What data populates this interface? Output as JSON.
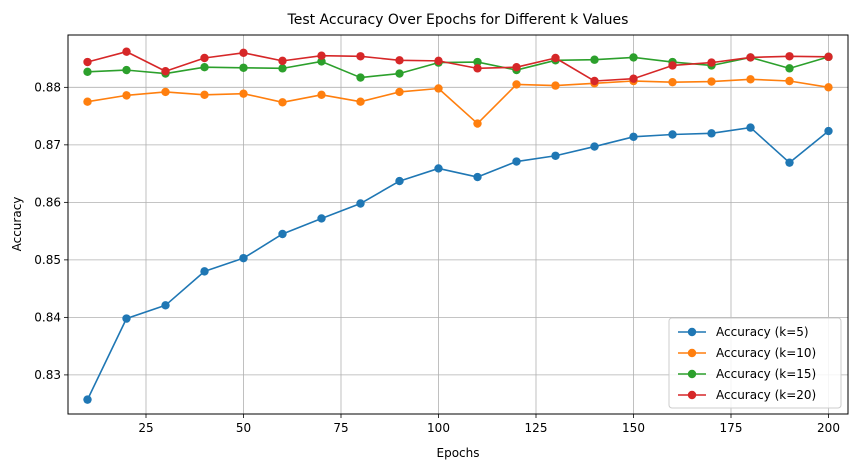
{
  "chart_data": {
    "type": "line",
    "title": "Test Accuracy Over Epochs for Different k Values",
    "xlabel": "Epochs",
    "ylabel": "Accuracy",
    "x": [
      10,
      20,
      30,
      40,
      50,
      60,
      70,
      80,
      90,
      100,
      110,
      120,
      130,
      140,
      150,
      160,
      170,
      180,
      190,
      200
    ],
    "xlim": [
      5,
      205
    ],
    "ylim": [
      0.8232,
      0.8891
    ],
    "xticks": [
      25,
      50,
      75,
      100,
      125,
      150,
      175,
      200
    ],
    "yticks": [
      0.83,
      0.84,
      0.85,
      0.86,
      0.87,
      0.88
    ],
    "xtick_labels": [
      "25",
      "50",
      "75",
      "100",
      "125",
      "150",
      "175",
      "200"
    ],
    "ytick_labels": [
      "0.83",
      "0.84",
      "0.85",
      "0.86",
      "0.87",
      "0.88"
    ],
    "grid": true,
    "legend_position": "bottom-right",
    "markers": true,
    "series": [
      {
        "name": "Accuracy (k=5)",
        "color": "#1f77b4",
        "values": [
          0.8257,
          0.8398,
          0.8421,
          0.848,
          0.8503,
          0.8545,
          0.8572,
          0.8598,
          0.8637,
          0.8659,
          0.8644,
          0.8671,
          0.8681,
          0.8697,
          0.8714,
          0.8718,
          0.872,
          0.873,
          0.8669,
          0.8724
        ]
      },
      {
        "name": "Accuracy (k=10)",
        "color": "#ff7f0e",
        "values": [
          0.8775,
          0.8786,
          0.8792,
          0.8787,
          0.8789,
          0.8774,
          0.8787,
          0.8775,
          0.8792,
          0.8798,
          0.8737,
          0.8805,
          0.8803,
          0.8807,
          0.8811,
          0.8809,
          0.881,
          0.8814,
          0.8811,
          0.88
        ]
      },
      {
        "name": "Accuracy (k=15)",
        "color": "#2ca02c",
        "values": [
          0.8827,
          0.883,
          0.8824,
          0.8835,
          0.8834,
          0.8833,
          0.8845,
          0.8817,
          0.8824,
          0.8843,
          0.8844,
          0.883,
          0.8847,
          0.8848,
          0.8852,
          0.8844,
          0.8838,
          0.8852,
          0.8833,
          0.8853
        ]
      },
      {
        "name": "Accuracy (k=20)",
        "color": "#d62728",
        "values": [
          0.8844,
          0.8862,
          0.8828,
          0.8851,
          0.886,
          0.8846,
          0.8855,
          0.8854,
          0.8847,
          0.8846,
          0.8833,
          0.8835,
          0.8851,
          0.8811,
          0.8815,
          0.8838,
          0.8843,
          0.8852,
          0.8854,
          0.8853
        ]
      }
    ]
  }
}
